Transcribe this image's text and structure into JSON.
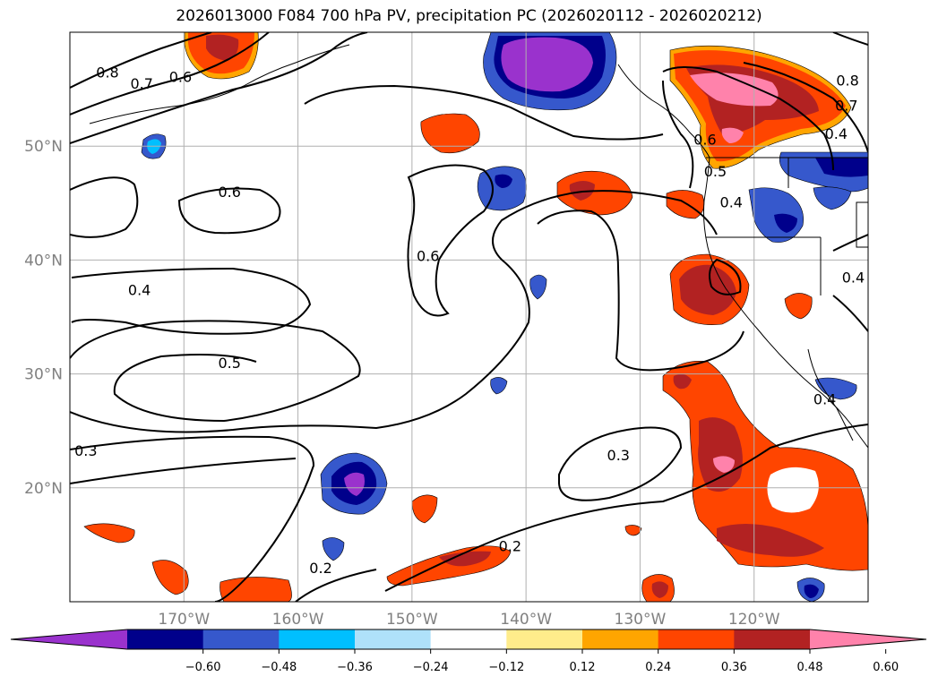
{
  "title": "2026013000 F084 700 hPa PV, precipitation PC (2026020112 - 2026020212)",
  "chart_data": {
    "type": "contour-map",
    "title": "2026013000 F084 700 hPa PV, precipitation PC (2026020112 - 2026020212)",
    "projection": "equirectangular",
    "lon_range": [
      -180,
      -110
    ],
    "lat_range": [
      10,
      60
    ],
    "grid": true,
    "lat_ticks": [
      {
        "value": 20,
        "label": "20°N"
      },
      {
        "value": 30,
        "label": "30°N"
      },
      {
        "value": 40,
        "label": "40°N"
      },
      {
        "value": 50,
        "label": "50°N"
      }
    ],
    "lon_ticks": [
      {
        "value": -170,
        "label": "170°W"
      },
      {
        "value": -160,
        "label": "160°W"
      },
      {
        "value": -150,
        "label": "150°W"
      },
      {
        "value": -140,
        "label": "140°W"
      },
      {
        "value": -130,
        "label": "130°W"
      },
      {
        "value": -120,
        "label": "120°W"
      }
    ],
    "pv_contour_labels": [
      {
        "text": "0.8",
        "lon": -176.7,
        "lat": 56.5
      },
      {
        "text": "0.7",
        "lon": -173.7,
        "lat": 55.5
      },
      {
        "text": "0.6",
        "lon": -170.3,
        "lat": 56.1
      },
      {
        "text": "0.6",
        "lon": -124.3,
        "lat": 50.6
      },
      {
        "text": "0.5",
        "lon": -123.4,
        "lat": 47.8
      },
      {
        "text": "0.4",
        "lon": -122.0,
        "lat": 45.1
      },
      {
        "text": "0.6",
        "lon": -166.0,
        "lat": 46.0
      },
      {
        "text": "0.6",
        "lon": -148.6,
        "lat": 40.4
      },
      {
        "text": "0.4",
        "lon": -173.9,
        "lat": 37.4
      },
      {
        "text": "0.5",
        "lon": -166.0,
        "lat": 31.0
      },
      {
        "text": "0.3",
        "lon": -178.6,
        "lat": 23.3
      },
      {
        "text": "0.3",
        "lon": -131.9,
        "lat": 22.9
      },
      {
        "text": "0.2",
        "lon": -158.0,
        "lat": 13.0
      },
      {
        "text": "0.2",
        "lon": -141.4,
        "lat": 14.9
      },
      {
        "text": "0.4",
        "lon": -112.8,
        "lat": 51.1
      },
      {
        "text": "0.8",
        "lon": -111.8,
        "lat": 55.8
      },
      {
        "text": "0.7",
        "lon": -111.9,
        "lat": 53.6
      },
      {
        "text": "0.4",
        "lon": -111.3,
        "lat": 38.5
      },
      {
        "text": "0.4",
        "lon": -113.8,
        "lat": 27.8
      }
    ],
    "colorbar": {
      "levels": [
        -0.6,
        -0.48,
        -0.36,
        -0.24,
        -0.12,
        0.12,
        0.24,
        0.36,
        0.48,
        0.6
      ],
      "tick_labels": [
        "−0.60",
        "−0.48",
        "−0.36",
        "−0.24",
        "−0.12",
        "0.12",
        "0.24",
        "0.36",
        "0.48",
        "0.60"
      ],
      "colors": [
        "#9a32cd",
        "#00008b",
        "#3658cc",
        "#00bfff",
        "#afe1fa",
        "#ffffff",
        "#ffec8b",
        "#ffa500",
        "#ff4500",
        "#b22222",
        "#ff82ab"
      ],
      "extend": "both"
    }
  }
}
